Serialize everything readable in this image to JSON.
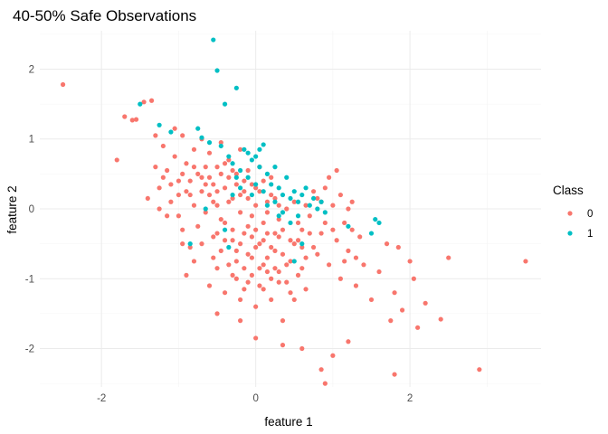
{
  "chart_data": {
    "type": "scatter",
    "title": "40-50% Safe Observations",
    "xlabel": "feature 1",
    "ylabel": "feature 2",
    "xlim": [
      -2.8,
      3.7
    ],
    "ylim": [
      -2.55,
      2.55
    ],
    "x_ticks": [
      -2,
      0,
      2
    ],
    "x_tick_labels": [
      "-2",
      "0",
      "2"
    ],
    "y_ticks": [
      -2,
      -1,
      0,
      1,
      2
    ],
    "y_tick_labels": [
      "-2",
      "-1",
      "0",
      "1",
      "2"
    ],
    "grid": true,
    "legend": {
      "title": "Class",
      "placement": "right"
    },
    "series": [
      {
        "name": "0",
        "color": "#F8766D",
        "points": [
          [
            -2.5,
            1.78
          ],
          [
            -1.8,
            0.7
          ],
          [
            -1.7,
            1.32
          ],
          [
            -1.6,
            1.27
          ],
          [
            -1.55,
            1.28
          ],
          [
            -1.45,
            1.53
          ],
          [
            -1.35,
            1.55
          ],
          [
            -1.3,
            1.05
          ],
          [
            -1.25,
            0.3
          ],
          [
            -1.2,
            0.9
          ],
          [
            -1.15,
            0.55
          ],
          [
            -1.1,
            0.1
          ],
          [
            -1.05,
            1.15
          ],
          [
            -1.0,
            0.4
          ],
          [
            -0.95,
            1.05
          ],
          [
            -0.9,
            0.65
          ],
          [
            -0.85,
            0.2
          ],
          [
            -0.8,
            0.85
          ],
          [
            -0.75,
            0.5
          ],
          [
            -0.7,
            1.0
          ],
          [
            -0.65,
            0.35
          ],
          [
            -0.6,
            0.8
          ],
          [
            -0.55,
            0.1
          ],
          [
            -0.5,
            0.6
          ],
          [
            -0.45,
            0.95
          ],
          [
            -0.4,
            0.3
          ],
          [
            -0.35,
            0.7
          ],
          [
            -0.3,
            0.15
          ],
          [
            -0.25,
            0.5
          ],
          [
            -0.2,
            0.85
          ],
          [
            -0.15,
            0.25
          ],
          [
            -0.1,
            0.55
          ],
          [
            -0.05,
            -0.1
          ],
          [
            0.0,
            0.3
          ],
          [
            0.05,
            0.6
          ],
          [
            0.1,
            -0.2
          ],
          [
            0.15,
            0.1
          ],
          [
            0.2,
            0.45
          ],
          [
            0.25,
            -0.35
          ],
          [
            0.3,
            0.05
          ],
          [
            -1.4,
            0.15
          ],
          [
            -1.3,
            0.6
          ],
          [
            -1.15,
            -0.1
          ],
          [
            -1.05,
            0.75
          ],
          [
            -0.95,
            -0.3
          ],
          [
            -0.9,
            0.25
          ],
          [
            -0.85,
            -0.55
          ],
          [
            -0.8,
            0.05
          ],
          [
            -0.75,
            -0.25
          ],
          [
            -0.7,
            0.45
          ],
          [
            -0.65,
            -0.05
          ],
          [
            -0.6,
            0.2
          ],
          [
            -0.55,
            -0.4
          ],
          [
            -0.5,
            0.05
          ],
          [
            -0.45,
            -0.15
          ],
          [
            -0.4,
            -0.45
          ],
          [
            -0.35,
            0.1
          ],
          [
            -0.3,
            -0.3
          ],
          [
            -0.25,
            -0.6
          ],
          [
            -0.2,
            -0.05
          ],
          [
            -0.15,
            -0.35
          ],
          [
            -0.1,
            -0.65
          ],
          [
            -0.05,
            -0.4
          ],
          [
            0.0,
            -0.55
          ],
          [
            0.05,
            -0.85
          ],
          [
            0.1,
            -0.45
          ],
          [
            0.15,
            -0.7
          ],
          [
            0.2,
            -1.0
          ],
          [
            0.25,
            -0.6
          ],
          [
            0.3,
            -0.9
          ],
          [
            -0.9,
            -0.95
          ],
          [
            -0.8,
            -0.75
          ],
          [
            -0.7,
            -0.5
          ],
          [
            -0.6,
            -1.1
          ],
          [
            -0.5,
            -0.85
          ],
          [
            -0.4,
            -1.2
          ],
          [
            -0.3,
            -0.95
          ],
          [
            -0.2,
            -1.3
          ],
          [
            -0.1,
            -1.05
          ],
          [
            0.0,
            -1.4
          ],
          [
            0.1,
            -1.15
          ],
          [
            0.2,
            -1.3
          ],
          [
            0.3,
            -1.05
          ],
          [
            0.35,
            -1.6
          ],
          [
            0.4,
            -0.8
          ],
          [
            0.45,
            -1.2
          ],
          [
            0.5,
            -0.5
          ],
          [
            0.55,
            -0.95
          ],
          [
            0.6,
            -0.3
          ],
          [
            0.65,
            -0.7
          ],
          [
            0.7,
            -0.1
          ],
          [
            0.75,
            -0.55
          ],
          [
            0.8,
            0.15
          ],
          [
            0.85,
            -0.35
          ],
          [
            0.9,
            0.3
          ],
          [
            0.95,
            -0.8
          ],
          [
            1.0,
            0.05
          ],
          [
            1.05,
            -0.45
          ],
          [
            1.1,
            -1.0
          ],
          [
            1.15,
            -0.2
          ],
          [
            1.2,
            -0.6
          ],
          [
            1.25,
            0.1
          ],
          [
            1.3,
            -1.1
          ],
          [
            1.35,
            -0.4
          ],
          [
            1.4,
            -0.8
          ],
          [
            1.5,
            -1.3
          ],
          [
            1.6,
            -0.9
          ],
          [
            1.7,
            -0.5
          ],
          [
            1.75,
            -1.6
          ],
          [
            1.8,
            -1.2
          ],
          [
            1.85,
            -0.55
          ],
          [
            1.9,
            -1.45
          ],
          [
            2.0,
            -0.75
          ],
          [
            2.05,
            -1.0
          ],
          [
            2.1,
            -1.7
          ],
          [
            2.2,
            -1.35
          ],
          [
            2.4,
            -1.58
          ],
          [
            2.5,
            -0.7
          ],
          [
            2.9,
            -2.3
          ],
          [
            3.5,
            -0.75
          ],
          [
            0.9,
            -2.5
          ],
          [
            0.85,
            -2.3
          ],
          [
            1.0,
            -2.1
          ],
          [
            1.2,
            -1.9
          ],
          [
            1.8,
            -2.37
          ],
          [
            0.6,
            -2.0
          ],
          [
            0.35,
            -1.95
          ],
          [
            0.0,
            -1.85
          ],
          [
            -0.2,
            -1.6
          ],
          [
            -0.5,
            -1.5
          ],
          [
            -0.95,
            -0.5
          ],
          [
            -1.0,
            -0.1
          ],
          [
            -1.25,
            0.0
          ],
          [
            -1.2,
            0.45
          ],
          [
            -1.1,
            0.35
          ],
          [
            -1.0,
            0.2
          ],
          [
            -0.95,
            0.5
          ],
          [
            -0.85,
            0.4
          ],
          [
            -0.8,
            0.6
          ],
          [
            -0.7,
            0.25
          ],
          [
            -0.65,
            0.6
          ],
          [
            -0.6,
            0.45
          ],
          [
            -0.55,
            0.35
          ],
          [
            -0.5,
            0.25
          ],
          [
            -0.45,
            0.5
          ],
          [
            -0.4,
            0.65
          ],
          [
            -0.35,
            0.45
          ],
          [
            -0.3,
            0.55
          ],
          [
            -0.25,
            0.35
          ],
          [
            -0.2,
            0.2
          ],
          [
            -0.15,
            0.4
          ],
          [
            -0.1,
            0.15
          ],
          [
            -0.05,
            0.35
          ],
          [
            0.0,
            0.05
          ],
          [
            0.05,
            0.25
          ],
          [
            0.1,
            0.4
          ],
          [
            0.15,
            -0.05
          ],
          [
            0.2,
            0.2
          ],
          [
            0.25,
            0.15
          ],
          [
            0.3,
            -0.15
          ],
          [
            0.35,
            -0.3
          ],
          [
            0.4,
            0.0
          ],
          [
            0.45,
            -0.45
          ],
          [
            0.5,
            0.1
          ],
          [
            0.55,
            -0.2
          ],
          [
            0.6,
            -0.55
          ],
          [
            0.65,
            0.05
          ],
          [
            0.7,
            -0.35
          ],
          [
            0.75,
            0.25
          ],
          [
            0.8,
            -0.65
          ],
          [
            0.85,
            0.1
          ],
          [
            0.9,
            -0.2
          ],
          [
            0.95,
            0.45
          ],
          [
            1.0,
            -0.3
          ],
          [
            1.05,
            0.55
          ],
          [
            1.1,
            0.2
          ],
          [
            1.15,
            -0.75
          ],
          [
            1.2,
            0.0
          ],
          [
            1.25,
            -0.3
          ],
          [
            1.3,
            -0.7
          ],
          [
            -0.3,
            -0.45
          ],
          [
            -0.25,
            -0.75
          ],
          [
            -0.2,
            -0.5
          ],
          [
            -0.15,
            -0.85
          ],
          [
            -0.1,
            -0.25
          ],
          [
            -0.05,
            -0.7
          ],
          [
            0.0,
            -0.3
          ],
          [
            0.05,
            -0.5
          ],
          [
            0.1,
            -0.8
          ],
          [
            0.15,
            -0.35
          ],
          [
            0.2,
            -0.55
          ],
          [
            0.25,
            -0.85
          ],
          [
            0.3,
            -0.4
          ],
          [
            0.35,
            -0.65
          ],
          [
            0.4,
            -1.05
          ],
          [
            0.45,
            -0.75
          ],
          [
            0.5,
            -1.3
          ],
          [
            0.55,
            -0.45
          ],
          [
            0.6,
            -0.85
          ],
          [
            0.65,
            -1.15
          ],
          [
            -0.55,
            -0.7
          ],
          [
            -0.45,
            -0.6
          ],
          [
            -0.35,
            -0.8
          ],
          [
            -0.25,
            -1.0
          ],
          [
            -0.15,
            -1.15
          ],
          [
            -0.05,
            -0.95
          ],
          [
            0.05,
            -1.1
          ],
          [
            0.15,
            -0.9
          ],
          [
            -0.5,
            -0.35
          ],
          [
            -0.4,
            -0.2
          ]
        ]
      },
      {
        "name": "1",
        "color": "#00BFC4",
        "points": [
          [
            -0.55,
            2.42
          ],
          [
            -0.5,
            1.98
          ],
          [
            -0.25,
            1.73
          ],
          [
            -0.4,
            1.5
          ],
          [
            -1.5,
            1.5
          ],
          [
            -1.25,
            1.2
          ],
          [
            -1.1,
            1.1
          ],
          [
            -0.75,
            1.15
          ],
          [
            -0.7,
            1.02
          ],
          [
            -0.6,
            0.95
          ],
          [
            -0.45,
            0.9
          ],
          [
            -0.35,
            0.75
          ],
          [
            -0.3,
            0.65
          ],
          [
            -0.2,
            0.55
          ],
          [
            -0.15,
            0.85
          ],
          [
            -0.1,
            0.8
          ],
          [
            -0.05,
            0.7
          ],
          [
            0.0,
            0.75
          ],
          [
            0.05,
            0.6
          ],
          [
            0.1,
            0.92
          ],
          [
            0.15,
            0.5
          ],
          [
            0.2,
            0.35
          ],
          [
            0.25,
            0.6
          ],
          [
            0.3,
            0.3
          ],
          [
            0.35,
            0.2
          ],
          [
            0.4,
            0.45
          ],
          [
            0.45,
            0.15
          ],
          [
            0.5,
            0.25
          ],
          [
            0.55,
            0.1
          ],
          [
            0.6,
            0.2
          ],
          [
            0.65,
            0.3
          ],
          [
            0.7,
            0.05
          ],
          [
            0.75,
            0.15
          ],
          [
            0.8,
            0.0
          ],
          [
            0.85,
            0.1
          ],
          [
            0.9,
            -0.05
          ],
          [
            0.3,
            -0.1
          ],
          [
            0.25,
            0.1
          ],
          [
            0.1,
            0.25
          ],
          [
            0.0,
            0.35
          ],
          [
            -0.1,
            0.45
          ],
          [
            -0.2,
            0.3
          ],
          [
            -0.3,
            0.2
          ],
          [
            -0.25,
            0.45
          ],
          [
            -0.05,
            0.2
          ],
          [
            0.15,
            0.05
          ],
          [
            0.35,
            -0.05
          ],
          [
            0.45,
            -0.2
          ],
          [
            0.55,
            -0.1
          ],
          [
            0.6,
            -0.5
          ],
          [
            0.5,
            -0.75
          ],
          [
            -0.85,
            -0.5
          ],
          [
            -0.4,
            -0.3
          ],
          [
            -0.35,
            -0.55
          ],
          [
            1.55,
            -0.15
          ],
          [
            1.6,
            -0.2
          ],
          [
            1.5,
            -0.35
          ],
          [
            1.2,
            -0.25
          ],
          [
            -0.65,
            0.0
          ],
          [
            0.05,
            0.85
          ]
        ]
      }
    ]
  }
}
